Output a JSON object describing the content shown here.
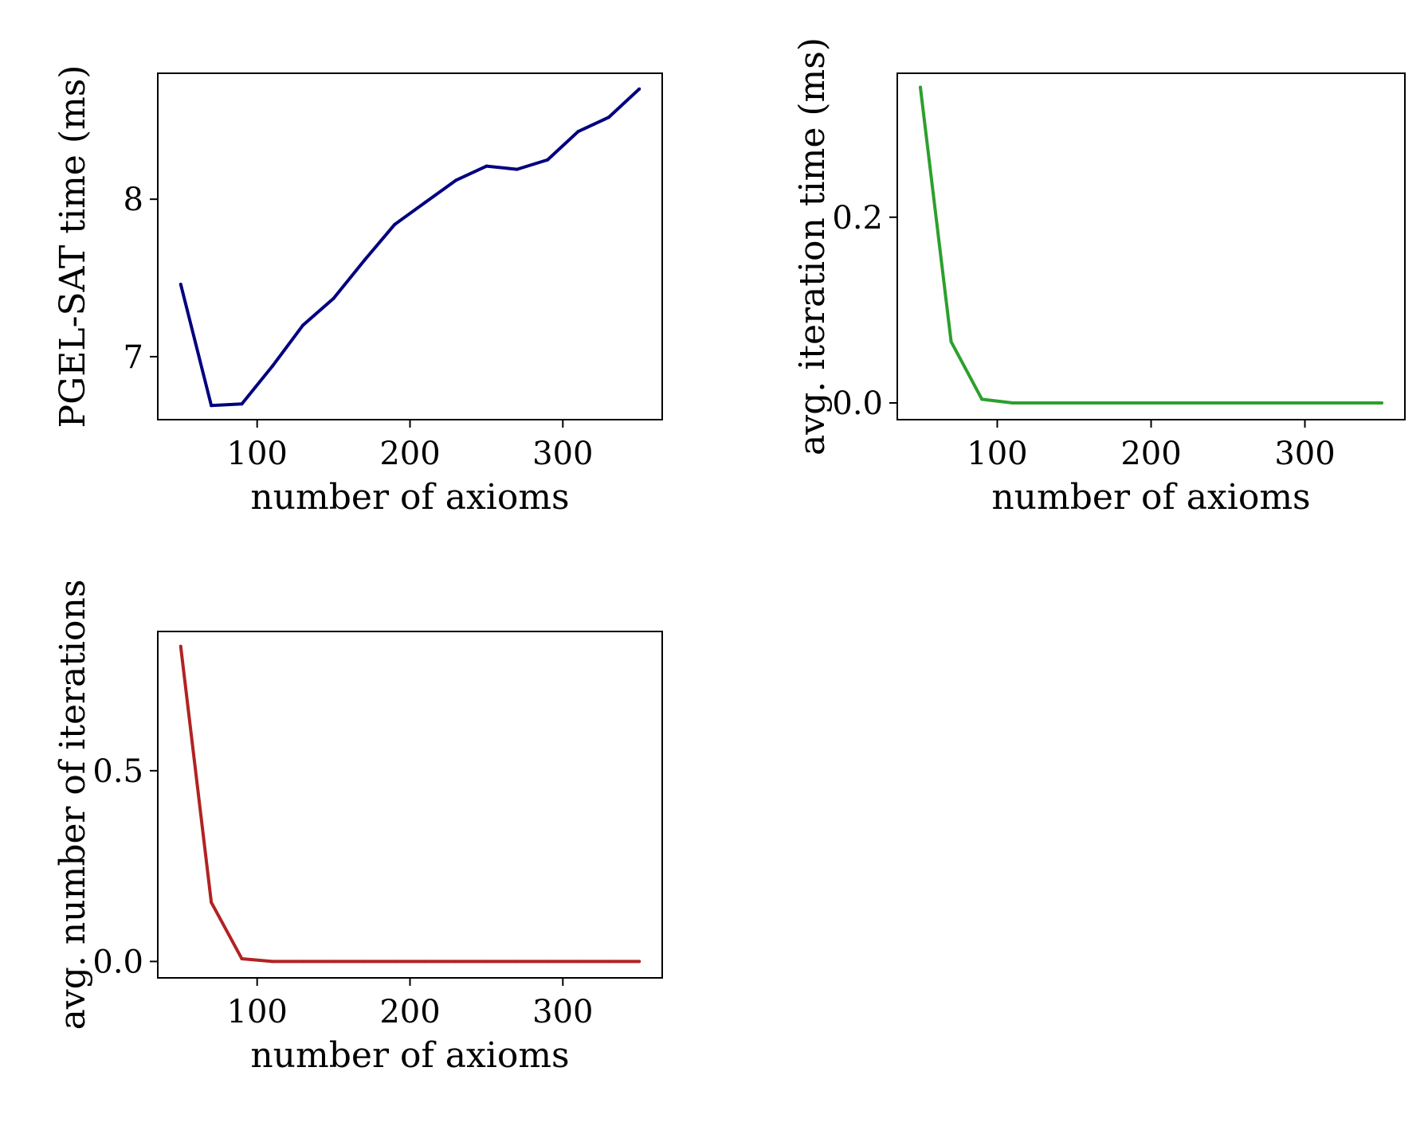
{
  "chart_data": [
    {
      "type": "line",
      "id": "pgel-sat",
      "xlabel": "number of axioms",
      "ylabel": "PGEL-SAT time (ms)",
      "xlim": [
        35,
        365
      ],
      "ylim": [
        6.6,
        8.8
      ],
      "xticks": [
        100,
        200,
        300
      ],
      "xtick_labels": [
        "100",
        "200",
        "300"
      ],
      "yticks": [
        7,
        8
      ],
      "ytick_labels": [
        "7",
        "8"
      ],
      "series": [
        {
          "color": "#00007f",
          "x": [
            50,
            70,
            90,
            110,
            130,
            150,
            170,
            190,
            210,
            230,
            250,
            270,
            290,
            310,
            330,
            350
          ],
          "y": [
            7.46,
            6.69,
            6.7,
            6.94,
            7.2,
            7.37,
            7.61,
            7.84,
            7.98,
            8.12,
            8.21,
            8.19,
            8.25,
            8.43,
            8.52,
            8.7
          ]
        }
      ]
    },
    {
      "type": "line",
      "id": "avg-iteration-time",
      "xlabel": "number of axioms",
      "ylabel": "avg. iteration time (ms)",
      "xlim": [
        35,
        365
      ],
      "ylim": [
        -0.018,
        0.355
      ],
      "xticks": [
        100,
        200,
        300
      ],
      "xtick_labels": [
        "100",
        "200",
        "300"
      ],
      "yticks": [
        0.0,
        0.2
      ],
      "ytick_labels": [
        "0.0",
        "0.2"
      ],
      "series": [
        {
          "color": "#2ca02c",
          "x": [
            50,
            70,
            90,
            110,
            130,
            150,
            170,
            190,
            210,
            230,
            250,
            270,
            290,
            310,
            330,
            350
          ],
          "y": [
            0.34,
            0.066,
            0.004,
            0.0,
            0.0,
            0.0,
            0.0,
            0.0,
            0.0,
            0.0,
            0.0,
            0.0,
            0.0,
            0.0,
            0.0,
            0.0
          ]
        }
      ]
    },
    {
      "type": "line",
      "id": "avg-number-of-iterations",
      "xlabel": "number of axioms",
      "ylabel": "avg. number of iterations",
      "xlim": [
        35,
        365
      ],
      "ylim": [
        -0.043,
        0.865
      ],
      "xticks": [
        100,
        200,
        300
      ],
      "xtick_labels": [
        "100",
        "200",
        "300"
      ],
      "yticks": [
        0.0,
        0.5
      ],
      "ytick_labels": [
        "0.0",
        "0.5"
      ],
      "series": [
        {
          "color": "#b22222",
          "x": [
            50,
            70,
            90,
            110,
            130,
            150,
            170,
            190,
            210,
            230,
            250,
            270,
            290,
            310,
            330,
            350
          ],
          "y": [
            0.826,
            0.155,
            0.007,
            0.0,
            0.0,
            0.0,
            0.0,
            0.0,
            0.0,
            0.0,
            0.0,
            0.0,
            0.0,
            0.0,
            0.0,
            0.0
          ]
        }
      ]
    }
  ]
}
